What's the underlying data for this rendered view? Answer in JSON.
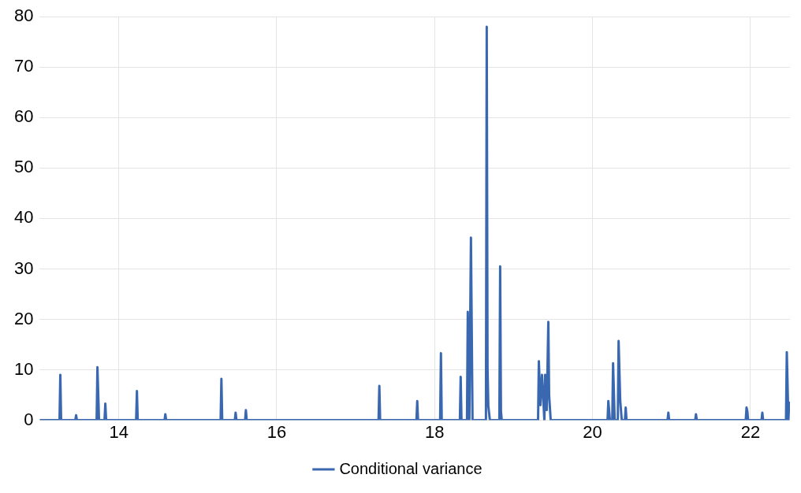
{
  "chart_data": {
    "type": "line",
    "x": [
      13.0,
      13.1,
      13.25,
      13.26,
      13.27,
      13.45,
      13.46,
      13.47,
      13.72,
      13.73,
      13.75,
      13.82,
      13.83,
      13.84,
      14.22,
      14.23,
      14.24,
      14.58,
      14.59,
      14.6,
      15.29,
      15.3,
      15.31,
      15.47,
      15.48,
      15.49,
      15.6,
      15.61,
      15.62,
      17.29,
      17.3,
      17.31,
      17.77,
      17.78,
      17.79,
      18.07,
      18.08,
      18.09,
      18.32,
      18.33,
      18.34,
      18.41,
      18.42,
      18.44,
      18.46,
      18.48,
      18.65,
      18.66,
      18.67,
      18.68,
      18.7,
      18.82,
      18.83,
      18.84,
      18.85,
      19.31,
      19.32,
      19.34,
      19.36,
      19.39,
      19.4,
      19.42,
      19.44,
      19.45,
      19.47,
      20.19,
      20.2,
      20.22,
      20.25,
      20.26,
      20.28,
      20.32,
      20.33,
      20.35,
      20.37,
      20.41,
      20.42,
      20.43,
      20.95,
      20.96,
      20.97,
      21.3,
      21.31,
      21.32,
      21.94,
      21.95,
      21.96,
      21.97,
      22.14,
      22.15,
      22.16,
      22.45,
      22.46,
      22.48,
      22.49
    ],
    "series": [
      {
        "name": "Conditional variance",
        "color": "#3a68b0",
        "values": [
          0,
          0,
          0,
          9.0,
          0,
          0,
          1.0,
          0,
          0,
          10.5,
          0,
          0,
          3.3,
          0,
          0,
          5.8,
          0,
          0,
          1.2,
          0,
          0,
          8.2,
          0,
          0,
          1.5,
          0,
          0,
          2.0,
          0,
          0,
          6.8,
          0,
          0,
          3.8,
          0,
          0,
          13.3,
          0,
          0,
          8.6,
          0,
          0,
          21.5,
          0,
          36.2,
          0,
          0,
          78.0,
          10.5,
          2.8,
          0,
          0,
          30.5,
          1.8,
          0,
          0,
          11.7,
          3,
          9.0,
          0,
          9.0,
          2,
          19.5,
          5,
          0,
          0,
          3.8,
          0,
          0,
          11.3,
          0,
          0,
          15.7,
          4,
          0,
          0,
          2.5,
          0,
          0,
          1.5,
          0,
          0,
          1.2,
          0,
          0,
          2.5,
          1.8,
          0,
          0,
          1.5,
          0,
          0,
          13.5,
          0,
          3.5
        ]
      }
    ],
    "xlim": [
      13,
      22.5
    ],
    "xticks": [
      14,
      16,
      18,
      20,
      22
    ],
    "ylim": [
      0,
      80
    ],
    "yticks": [
      0,
      10,
      20,
      30,
      40,
      50,
      60,
      70,
      80
    ],
    "grid": true,
    "legend": "bottom",
    "marker": "none",
    "line_style": "solid"
  }
}
